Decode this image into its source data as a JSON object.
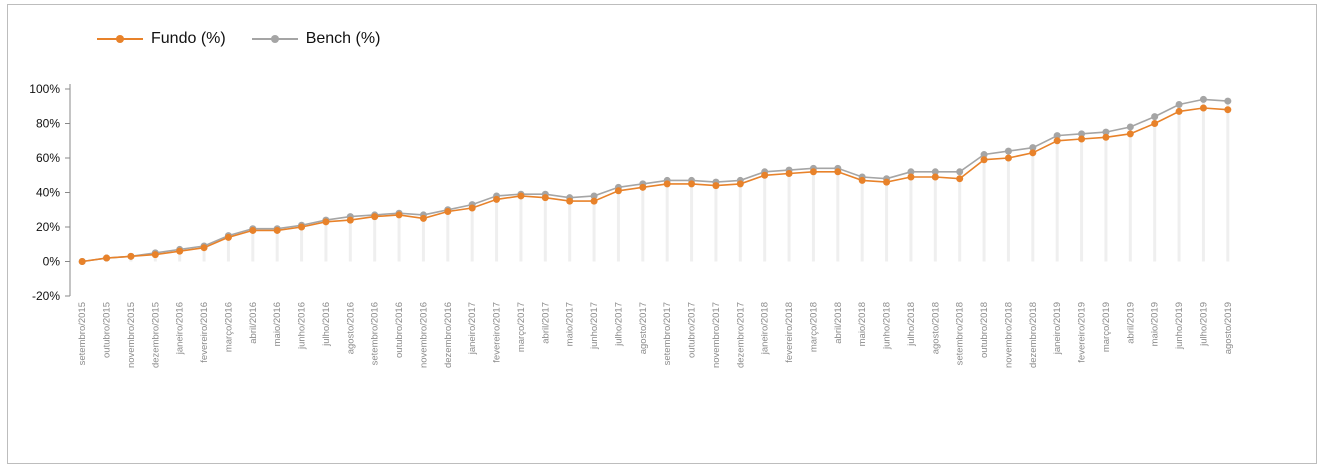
{
  "colors": {
    "fundo": "#e8822a",
    "bench": "#a5a5a5",
    "stem": "#efefef",
    "axis": "#888888"
  },
  "chart_data": {
    "type": "line",
    "legend_position": "top-left",
    "grid": false,
    "title": "",
    "xlabel": "",
    "ylabel": "",
    "ylim": [
      -20,
      100
    ],
    "yticks": [
      -20,
      0,
      20,
      40,
      60,
      80,
      100
    ],
    "ytick_labels": [
      "-20%",
      "0%",
      "20%",
      "40%",
      "60%",
      "80%",
      "100%"
    ],
    "categories": [
      "setembro/2015",
      "outubro/2015",
      "novembro/2015",
      "dezembro/2015",
      "janeiro/2016",
      "fevereiro/2016",
      "março/2016",
      "abril/2016",
      "maio/2016",
      "junho/2016",
      "julho/2016",
      "agosto/2016",
      "setembro/2016",
      "outubro/2016",
      "novembro/2016",
      "dezembro/2016",
      "janeiro/2017",
      "fevereiro/2017",
      "março/2017",
      "abril/2017",
      "maio/2017",
      "junho/2017",
      "julho/2017",
      "agosto/2017",
      "setembro/2017",
      "outubro/2017",
      "novembro/2017",
      "dezembro/2017",
      "janeiro/2018",
      "fevereiro/2018",
      "março/2018",
      "abril/2018",
      "maio/2018",
      "junho/2018",
      "julho/2018",
      "agosto/2018",
      "setembro/2018",
      "outubro/2018",
      "novembro/2018",
      "dezembro/2018",
      "janeiro/2019",
      "fevereiro/2019",
      "março/2019",
      "abril/2019",
      "maio/2019",
      "junho/2019",
      "julho/2019",
      "agosto/2019"
    ],
    "series": [
      {
        "name": "Fundo (%)",
        "values": [
          0,
          2,
          3,
          4,
          6,
          8,
          14,
          18,
          18,
          20,
          23,
          24,
          26,
          27,
          25,
          29,
          31,
          36,
          38,
          37,
          35,
          35,
          41,
          43,
          45,
          45,
          44,
          45,
          50,
          51,
          52,
          52,
          47,
          46,
          49,
          49,
          48,
          59,
          60,
          63,
          70,
          71,
          72,
          74,
          80,
          87,
          89,
          88
        ]
      },
      {
        "name": "Bench (%)",
        "values": [
          0,
          2,
          3,
          5,
          7,
          9,
          15,
          19,
          19,
          21,
          24,
          26,
          27,
          28,
          27,
          30,
          33,
          38,
          39,
          39,
          37,
          38,
          43,
          45,
          47,
          47,
          46,
          47,
          52,
          53,
          54,
          54,
          49,
          48,
          52,
          52,
          52,
          62,
          64,
          66,
          73,
          74,
          75,
          78,
          84,
          91,
          94,
          93
        ]
      }
    ]
  }
}
